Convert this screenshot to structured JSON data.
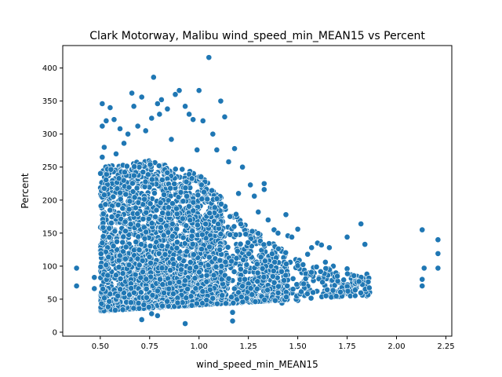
{
  "chart_data": {
    "type": "scatter",
    "title": "Clark Motorway, Malibu wind_speed_min_MEAN15 vs Percent",
    "xlabel": "wind_speed_min_MEAN15",
    "ylabel": "Percent",
    "xlim": [
      0.31,
      2.28
    ],
    "ylim": [
      -6,
      434
    ],
    "x_ticks": [
      0.5,
      0.75,
      1.0,
      1.25,
      1.5,
      1.75,
      2.0,
      2.25
    ],
    "x_tick_labels": [
      "0.50",
      "0.75",
      "1.00",
      "1.25",
      "1.50",
      "1.75",
      "2.00",
      "2.25"
    ],
    "y_ticks": [
      0,
      50,
      100,
      150,
      200,
      250,
      300,
      350,
      400
    ],
    "y_tick_labels": [
      "0",
      "50",
      "100",
      "150",
      "200",
      "250",
      "300",
      "350",
      "400"
    ],
    "grid": false,
    "legend": "none",
    "marker_color": "#1f77b4",
    "marker_edge_color": "#ffffff",
    "points": [
      [
        0.38,
        97
      ],
      [
        0.38,
        70
      ],
      [
        0.47,
        83
      ],
      [
        0.47,
        66
      ],
      [
        0.51,
        346
      ],
      [
        0.51,
        312
      ],
      [
        0.52,
        280
      ],
      [
        0.51,
        265
      ],
      [
        0.53,
        320
      ],
      [
        0.55,
        340
      ],
      [
        0.57,
        322
      ],
      [
        0.52,
        230
      ],
      [
        0.54,
        218
      ],
      [
        0.53,
        195
      ],
      [
        0.51,
        178
      ],
      [
        0.56,
        252
      ],
      [
        0.58,
        270
      ],
      [
        0.6,
        308
      ],
      [
        0.62,
        286
      ],
      [
        0.64,
        300
      ],
      [
        0.66,
        362
      ],
      [
        0.67,
        342
      ],
      [
        0.69,
        312
      ],
      [
        0.71,
        356
      ],
      [
        0.73,
        305
      ],
      [
        0.76,
        324
      ],
      [
        0.77,
        386
      ],
      [
        0.79,
        346
      ],
      [
        0.81,
        352
      ],
      [
        0.8,
        330
      ],
      [
        0.84,
        338
      ],
      [
        0.86,
        292
      ],
      [
        0.88,
        360
      ],
      [
        0.9,
        366
      ],
      [
        0.93,
        342
      ],
      [
        0.95,
        330
      ],
      [
        0.97,
        322
      ],
      [
        0.99,
        276
      ],
      [
        1.0,
        366
      ],
      [
        1.02,
        320
      ],
      [
        1.05,
        416
      ],
      [
        1.07,
        300
      ],
      [
        1.09,
        276
      ],
      [
        1.11,
        350
      ],
      [
        1.13,
        326
      ],
      [
        1.15,
        258
      ],
      [
        1.18,
        278
      ],
      [
        1.2,
        210
      ],
      [
        1.22,
        250
      ],
      [
        1.26,
        223
      ],
      [
        1.28,
        206
      ],
      [
        1.3,
        182
      ],
      [
        1.33,
        225
      ],
      [
        1.33,
        216
      ],
      [
        1.35,
        170
      ],
      [
        1.38,
        155
      ],
      [
        1.4,
        150
      ],
      [
        1.42,
        122
      ],
      [
        1.44,
        178
      ],
      [
        1.45,
        146
      ],
      [
        1.47,
        144
      ],
      [
        1.49,
        110
      ],
      [
        1.5,
        156
      ],
      [
        1.52,
        93
      ],
      [
        1.55,
        118
      ],
      [
        1.57,
        128
      ],
      [
        1.6,
        135
      ],
      [
        1.62,
        132
      ],
      [
        1.64,
        106
      ],
      [
        1.66,
        128
      ],
      [
        1.68,
        100
      ],
      [
        1.7,
        88
      ],
      [
        1.72,
        75
      ],
      [
        1.75,
        96
      ],
      [
        1.75,
        144
      ],
      [
        1.77,
        70
      ],
      [
        1.8,
        80
      ],
      [
        1.82,
        164
      ],
      [
        1.84,
        133
      ],
      [
        1.85,
        88
      ],
      [
        1.86,
        82
      ],
      [
        1.85,
        55
      ],
      [
        1.77,
        58
      ],
      [
        1.74,
        58
      ],
      [
        2.13,
        155
      ],
      [
        2.14,
        97
      ],
      [
        2.13,
        80
      ],
      [
        2.13,
        70
      ],
      [
        2.21,
        140
      ],
      [
        2.21,
        119
      ],
      [
        2.21,
        97
      ],
      [
        0.71,
        19
      ],
      [
        0.76,
        28
      ],
      [
        0.79,
        25
      ],
      [
        0.93,
        13
      ],
      [
        1.17,
        17
      ],
      [
        1.17,
        30
      ],
      [
        1.22,
        54
      ],
      [
        1.3,
        52
      ],
      [
        1.42,
        44
      ],
      [
        1.5,
        48
      ],
      [
        1.6,
        62
      ],
      [
        1.66,
        60
      ]
    ],
    "dense_region": {
      "x_range": [
        0.5,
        1.9
      ],
      "y_lower": [
        30,
        35,
        40,
        42,
        45,
        48,
        50
      ],
      "y_upper_at": [
        [
          0.5,
          250
        ],
        [
          0.75,
          260
        ],
        [
          1.0,
          240
        ],
        [
          1.25,
          160
        ],
        [
          1.5,
          110
        ],
        [
          1.75,
          90
        ],
        [
          1.9,
          80
        ]
      ],
      "count": 3200
    }
  }
}
